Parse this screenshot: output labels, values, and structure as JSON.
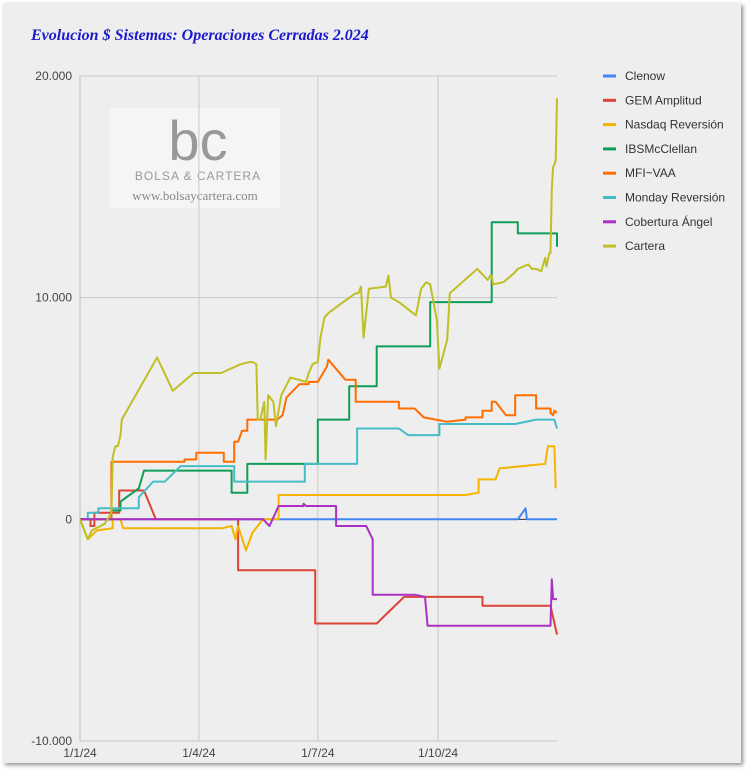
{
  "title": "Evolucion $ Sistemas: Operaciones Cerradas 2.024",
  "watermark": {
    "logo_text": "bc",
    "brand": "BOLSA & CARTERA",
    "url": "www.bolsaycartera.com"
  },
  "chart_data": {
    "type": "line",
    "title": "Evolucion $ Sistemas: Operaciones Cerradas 2.024",
    "xlabel": "",
    "ylabel": "",
    "x_domain": [
      "2024-01-01",
      "2024-12-31"
    ],
    "x_ticks": [
      {
        "date": "2024-01-01",
        "label": "1/1/24"
      },
      {
        "date": "2024-04-01",
        "label": "1/4/24"
      },
      {
        "date": "2024-07-01",
        "label": "1/7/24"
      },
      {
        "date": "2024-10-01",
        "label": "1/10/24"
      }
    ],
    "ylim": [
      -10000,
      20000
    ],
    "y_ticks": [
      {
        "value": 20000,
        "label": "20.000"
      },
      {
        "value": 10000,
        "label": "10.000"
      },
      {
        "value": 0,
        "label": "0"
      },
      {
        "value": -10000,
        "label": "-10.000"
      }
    ],
    "grid": true,
    "legend_position": "right",
    "series": [
      {
        "name": "Clenow",
        "color": "#4285f4",
        "points": [
          [
            "2024-01-01",
            0
          ],
          [
            "2024-12-01",
            0
          ],
          [
            "2024-12-07",
            500
          ],
          [
            "2024-12-08",
            0
          ],
          [
            "2024-12-31",
            0
          ]
        ]
      },
      {
        "name": "GEM Amplitud",
        "color": "#db4437",
        "points": [
          [
            "2024-01-01",
            0
          ],
          [
            "2024-01-09",
            0
          ],
          [
            "2024-01-09",
            -300
          ],
          [
            "2024-01-12",
            -300
          ],
          [
            "2024-01-12",
            300
          ],
          [
            "2024-01-31",
            300
          ],
          [
            "2024-01-31",
            1300
          ],
          [
            "2024-02-19",
            1300
          ],
          [
            "2024-02-28",
            0
          ],
          [
            "2024-05-01",
            0
          ],
          [
            "2024-05-01",
            -2300
          ],
          [
            "2024-06-29",
            -2300
          ],
          [
            "2024-06-29",
            -4700
          ],
          [
            "2024-08-15",
            -4700
          ],
          [
            "2024-09-05",
            -3500
          ],
          [
            "2024-10-22",
            -3500
          ],
          [
            "2024-11-04",
            -3500
          ],
          [
            "2024-11-04",
            -3900
          ],
          [
            "2024-12-26",
            -3900
          ],
          [
            "2024-12-31",
            -5200
          ]
        ]
      },
      {
        "name": "Nasdaq Reversión",
        "color": "#f4b400",
        "points": [
          [
            "2024-01-01",
            0
          ],
          [
            "2024-01-07",
            -900
          ],
          [
            "2024-01-14",
            -500
          ],
          [
            "2024-01-26",
            -400
          ],
          [
            "2024-01-26",
            0
          ],
          [
            "2024-02-01",
            0
          ],
          [
            "2024-02-03",
            -400
          ],
          [
            "2024-04-19",
            -400
          ],
          [
            "2024-04-26",
            -300
          ],
          [
            "2024-04-29",
            -900
          ],
          [
            "2024-05-01",
            -300
          ],
          [
            "2024-05-07",
            -1400
          ],
          [
            "2024-05-12",
            -600
          ],
          [
            "2024-05-20",
            0
          ],
          [
            "2024-06-01",
            0
          ],
          [
            "2024-06-01",
            1100
          ],
          [
            "2024-10-22",
            1100
          ],
          [
            "2024-11-01",
            1200
          ],
          [
            "2024-11-01",
            1800
          ],
          [
            "2024-11-14",
            1800
          ],
          [
            "2024-11-17",
            2300
          ],
          [
            "2024-12-22",
            2500
          ],
          [
            "2024-12-24",
            3300
          ],
          [
            "2024-12-29",
            3300
          ],
          [
            "2024-12-30",
            1400
          ]
        ]
      },
      {
        "name": "IBSMcClellan",
        "color": "#0f9d58",
        "points": [
          [
            "2024-01-01",
            0
          ],
          [
            "2024-01-25",
            0
          ],
          [
            "2024-01-25",
            400
          ],
          [
            "2024-02-01",
            400
          ],
          [
            "2024-02-01",
            800
          ],
          [
            "2024-02-15",
            1400
          ],
          [
            "2024-02-19",
            2200
          ],
          [
            "2024-04-26",
            2200
          ],
          [
            "2024-04-26",
            1200
          ],
          [
            "2024-05-08",
            1200
          ],
          [
            "2024-05-08",
            2500
          ],
          [
            "2024-07-01",
            2500
          ],
          [
            "2024-07-01",
            4500
          ],
          [
            "2024-07-25",
            4500
          ],
          [
            "2024-07-25",
            6000
          ],
          [
            "2024-08-15",
            6000
          ],
          [
            "2024-08-15",
            7800
          ],
          [
            "2024-09-25",
            7800
          ],
          [
            "2024-09-25",
            9800
          ],
          [
            "2024-11-11",
            9800
          ],
          [
            "2024-11-11",
            13400
          ],
          [
            "2024-12-01",
            13400
          ],
          [
            "2024-12-01",
            12900
          ],
          [
            "2024-12-31",
            12900
          ],
          [
            "2024-12-31",
            12300
          ]
        ]
      },
      {
        "name": "MFI~VAA",
        "color": "#ff6d00",
        "points": [
          [
            "2024-01-01",
            0
          ],
          [
            "2024-01-25",
            0
          ],
          [
            "2024-01-25",
            2600
          ],
          [
            "2024-03-21",
            2600
          ],
          [
            "2024-03-21",
            2700
          ],
          [
            "2024-03-30",
            2700
          ],
          [
            "2024-03-30",
            3000
          ],
          [
            "2024-04-20",
            3000
          ],
          [
            "2024-04-20",
            2600
          ],
          [
            "2024-04-28",
            2600
          ],
          [
            "2024-04-28",
            3500
          ],
          [
            "2024-05-01",
            3500
          ],
          [
            "2024-05-04",
            4000
          ],
          [
            "2024-05-08",
            4000
          ],
          [
            "2024-05-08",
            4500
          ],
          [
            "2024-05-31",
            4500
          ],
          [
            "2024-06-04",
            4700
          ],
          [
            "2024-06-07",
            5500
          ],
          [
            "2024-06-17",
            6100
          ],
          [
            "2024-06-24",
            6100
          ],
          [
            "2024-06-24",
            6200
          ],
          [
            "2024-07-01",
            6200
          ],
          [
            "2024-07-08",
            6900
          ],
          [
            "2024-07-09",
            7200
          ],
          [
            "2024-07-22",
            6300
          ],
          [
            "2024-07-30",
            6300
          ],
          [
            "2024-07-30",
            5300
          ],
          [
            "2024-09-01",
            5300
          ],
          [
            "2024-09-01",
            5000
          ],
          [
            "2024-09-13",
            5000
          ],
          [
            "2024-09-20",
            4600
          ],
          [
            "2024-10-08",
            4400
          ],
          [
            "2024-10-22",
            4500
          ],
          [
            "2024-10-22",
            4600
          ],
          [
            "2024-11-04",
            4600
          ],
          [
            "2024-11-04",
            4900
          ],
          [
            "2024-11-11",
            4900
          ],
          [
            "2024-11-11",
            5300
          ],
          [
            "2024-11-14",
            5300
          ],
          [
            "2024-11-22",
            4700
          ],
          [
            "2024-11-29",
            4700
          ],
          [
            "2024-11-29",
            5600
          ],
          [
            "2024-12-15",
            5600
          ],
          [
            "2024-12-15",
            5000
          ],
          [
            "2024-12-26",
            5000
          ],
          [
            "2024-12-26",
            4800
          ],
          [
            "2024-12-28",
            4700
          ],
          [
            "2024-12-29",
            4900
          ],
          [
            "2024-12-31",
            4800
          ]
        ]
      },
      {
        "name": "Monday Reversión",
        "color": "#46bdc6",
        "points": [
          [
            "2024-01-01",
            0
          ],
          [
            "2024-01-07",
            0
          ],
          [
            "2024-01-07",
            300
          ],
          [
            "2024-01-15",
            300
          ],
          [
            "2024-01-15",
            500
          ],
          [
            "2024-02-15",
            500
          ],
          [
            "2024-02-15",
            1000
          ],
          [
            "2024-02-26",
            1700
          ],
          [
            "2024-03-06",
            1700
          ],
          [
            "2024-03-18",
            2400
          ],
          [
            "2024-04-28",
            2400
          ],
          [
            "2024-04-28",
            1700
          ],
          [
            "2024-06-21",
            1700
          ],
          [
            "2024-06-21",
            2500
          ],
          [
            "2024-07-31",
            2500
          ],
          [
            "2024-07-31",
            4100
          ],
          [
            "2024-09-01",
            4100
          ],
          [
            "2024-09-08",
            3800
          ],
          [
            "2024-10-02",
            3800
          ],
          [
            "2024-10-02",
            4300
          ],
          [
            "2024-11-29",
            4300
          ],
          [
            "2024-12-15",
            4500
          ],
          [
            "2024-12-29",
            4500
          ],
          [
            "2024-12-31",
            4100
          ]
        ]
      },
      {
        "name": "Cobertura Ángel",
        "color": "#ab30c4",
        "points": [
          [
            "2024-01-01",
            0
          ],
          [
            "2024-05-20",
            0
          ],
          [
            "2024-05-25",
            -300
          ],
          [
            "2024-06-01",
            600
          ],
          [
            "2024-06-20",
            600
          ],
          [
            "2024-06-20",
            700
          ],
          [
            "2024-06-22",
            600
          ],
          [
            "2024-07-15",
            600
          ],
          [
            "2024-07-15",
            -300
          ],
          [
            "2024-08-07",
            -300
          ],
          [
            "2024-08-12",
            -900
          ],
          [
            "2024-08-12",
            -3400
          ],
          [
            "2024-09-13",
            -3400
          ],
          [
            "2024-09-21",
            -3500
          ],
          [
            "2024-09-23",
            -4800
          ],
          [
            "2024-12-26",
            -4800
          ],
          [
            "2024-12-27",
            -2700
          ],
          [
            "2024-12-28",
            -3600
          ],
          [
            "2024-12-31",
            -3600
          ]
        ]
      },
      {
        "name": "Cartera",
        "color": "#bfbf26",
        "points": [
          [
            "2024-01-01",
            0
          ],
          [
            "2024-01-07",
            -900
          ],
          [
            "2024-01-10",
            -500
          ],
          [
            "2024-01-20",
            -200
          ],
          [
            "2024-01-25",
            300
          ],
          [
            "2024-01-26",
            2800
          ],
          [
            "2024-01-28",
            3300
          ],
          [
            "2024-01-30",
            3300
          ],
          [
            "2024-02-01",
            3800
          ],
          [
            "2024-02-02",
            4500
          ],
          [
            "2024-02-29",
            7300
          ],
          [
            "2024-03-12",
            5800
          ],
          [
            "2024-03-28",
            6600
          ],
          [
            "2024-04-15",
            6600
          ],
          [
            "2024-04-18",
            6600
          ],
          [
            "2024-05-03",
            7000
          ],
          [
            "2024-05-10",
            7100
          ],
          [
            "2024-05-12",
            7100
          ],
          [
            "2024-05-15",
            7000
          ],
          [
            "2024-05-16",
            4500
          ],
          [
            "2024-05-18",
            4500
          ],
          [
            "2024-05-21",
            5300
          ],
          [
            "2024-05-22",
            2700
          ],
          [
            "2024-05-24",
            5600
          ],
          [
            "2024-05-28",
            5300
          ],
          [
            "2024-05-30",
            4200
          ],
          [
            "2024-06-03",
            5600
          ],
          [
            "2024-06-10",
            6400
          ],
          [
            "2024-06-22",
            6200
          ],
          [
            "2024-06-24",
            6600
          ],
          [
            "2024-06-27",
            7000
          ],
          [
            "2024-07-01",
            7100
          ],
          [
            "2024-07-03",
            8200
          ],
          [
            "2024-07-06",
            9100
          ],
          [
            "2024-07-09",
            9300
          ],
          [
            "2024-07-18",
            9700
          ],
          [
            "2024-07-30",
            10200
          ],
          [
            "2024-08-01",
            10200
          ],
          [
            "2024-08-03",
            10500
          ],
          [
            "2024-08-05",
            8200
          ],
          [
            "2024-08-09",
            10400
          ],
          [
            "2024-08-22",
            10500
          ],
          [
            "2024-08-24",
            11000
          ],
          [
            "2024-08-26",
            10000
          ],
          [
            "2024-09-01",
            9800
          ],
          [
            "2024-09-14",
            9200
          ],
          [
            "2024-09-18",
            10400
          ],
          [
            "2024-09-22",
            10700
          ],
          [
            "2024-09-25",
            10600
          ],
          [
            "2024-09-30",
            9000
          ],
          [
            "2024-10-02",
            6800
          ],
          [
            "2024-10-08",
            8100
          ],
          [
            "2024-10-10",
            10200
          ],
          [
            "2024-10-31",
            11300
          ],
          [
            "2024-11-08",
            10800
          ],
          [
            "2024-11-10",
            11000
          ],
          [
            "2024-11-11",
            11000
          ],
          [
            "2024-11-12",
            10600
          ],
          [
            "2024-11-20",
            10700
          ],
          [
            "2024-11-28",
            11100
          ],
          [
            "2024-12-01",
            11300
          ],
          [
            "2024-12-09",
            11500
          ],
          [
            "2024-12-12",
            11300
          ],
          [
            "2024-12-15",
            11300
          ],
          [
            "2024-12-19",
            11200
          ],
          [
            "2024-12-22",
            11800
          ],
          [
            "2024-12-23",
            11400
          ],
          [
            "2024-12-25",
            12000
          ],
          [
            "2024-12-26",
            12000
          ],
          [
            "2024-12-27",
            14900
          ],
          [
            "2024-12-28",
            15900
          ],
          [
            "2024-12-29",
            16000
          ],
          [
            "2024-12-30",
            16200
          ],
          [
            "2024-12-31",
            19000
          ]
        ]
      }
    ]
  }
}
